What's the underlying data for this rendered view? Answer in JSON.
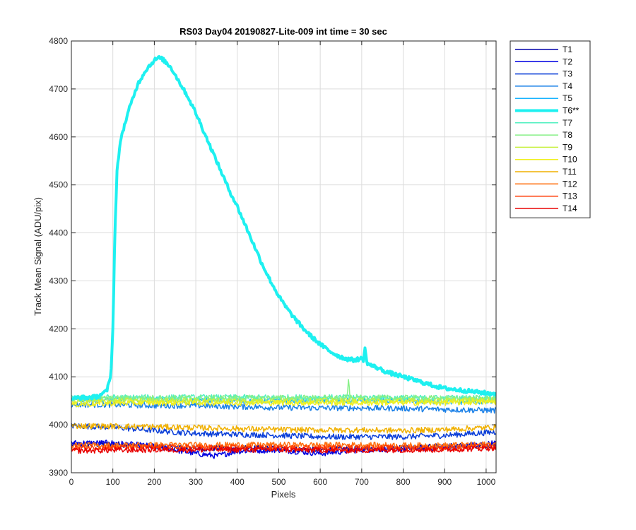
{
  "chart_data": {
    "type": "line",
    "title": "RS03 Day04 20190827-Lite-009 int time = 30 sec",
    "xlabel": "Pixels",
    "ylabel": "Track Mean Signal (ADU/pix)",
    "xlim": [
      0,
      1024
    ],
    "ylim": [
      3900,
      4800
    ],
    "xticks": [
      0,
      100,
      200,
      300,
      400,
      500,
      600,
      700,
      800,
      900,
      1000
    ],
    "yticks": [
      3900,
      4000,
      4100,
      4200,
      4300,
      4400,
      4500,
      4600,
      4700,
      4800
    ],
    "grid": true,
    "legend_position": "outside-top-right",
    "series": [
      {
        "name": "T1",
        "color": "#0000a8",
        "width": 1.5,
        "x": [
          0,
          100,
          200,
          300,
          400,
          500,
          600,
          700,
          800,
          900,
          1024
        ],
        "y": [
          3958,
          3960,
          3955,
          3950,
          3952,
          3950,
          3948,
          3950,
          3952,
          3955,
          3958
        ]
      },
      {
        "name": "T2",
        "color": "#0000e0",
        "width": 1.5,
        "x": [
          0,
          100,
          200,
          300,
          350,
          400,
          500,
          600,
          700,
          800,
          900,
          1024
        ],
        "y": [
          3962,
          3962,
          3955,
          3940,
          3935,
          3945,
          3948,
          3940,
          3948,
          3950,
          3952,
          3962
        ]
      },
      {
        "name": "T3",
        "color": "#0a3ed8",
        "width": 1.5,
        "x": [
          0,
          100,
          200,
          300,
          400,
          500,
          600,
          700,
          800,
          900,
          1024
        ],
        "y": [
          3998,
          3995,
          3988,
          3982,
          3980,
          3978,
          3975,
          3975,
          3975,
          3978,
          3985
        ]
      },
      {
        "name": "T4",
        "color": "#1a80e8",
        "width": 1.5,
        "x": [
          0,
          100,
          200,
          300,
          400,
          500,
          600,
          700,
          800,
          900,
          1024
        ],
        "y": [
          4042,
          4042,
          4040,
          4040,
          4038,
          4036,
          4035,
          4035,
          4034,
          4032,
          4030
        ]
      },
      {
        "name": "T5",
        "color": "#19b4ff",
        "width": 1.5,
        "x": [
          0,
          100,
          200,
          300,
          400,
          500,
          600,
          700,
          800,
          900,
          1024
        ],
        "y": [
          4052,
          4052,
          4052,
          4050,
          4050,
          4050,
          4050,
          4050,
          4050,
          4048,
          4048
        ]
      },
      {
        "name": "T6**",
        "color": "#1ef0f0",
        "width": 4,
        "x": [
          0,
          60,
          85,
          95,
          100,
          105,
          110,
          120,
          140,
          160,
          180,
          200,
          210,
          220,
          240,
          260,
          280,
          300,
          320,
          340,
          360,
          380,
          400,
          420,
          440,
          460,
          480,
          500,
          520,
          540,
          560,
          580,
          600,
          620,
          640,
          660,
          680,
          700,
          720,
          740,
          760,
          780,
          800,
          820,
          840,
          860,
          880,
          900,
          920,
          940,
          960,
          980,
          1000,
          1024
        ],
        "y": [
          4055,
          4058,
          4070,
          4100,
          4200,
          4400,
          4530,
          4600,
          4660,
          4710,
          4740,
          4760,
          4765,
          4762,
          4745,
          4715,
          4685,
          4650,
          4610,
          4570,
          4530,
          4490,
          4455,
          4415,
          4375,
          4335,
          4300,
          4268,
          4242,
          4220,
          4200,
          4183,
          4168,
          4155,
          4145,
          4138,
          4135,
          4138,
          4125,
          4118,
          4110,
          4105,
          4100,
          4095,
          4090,
          4085,
          4080,
          4076,
          4074,
          4072,
          4070,
          4068,
          4066,
          4065
        ]
      },
      {
        "name": "T7",
        "color": "#50f0c0",
        "width": 1.5,
        "x": [
          0,
          100,
          200,
          300,
          400,
          500,
          600,
          700,
          800,
          900,
          1024
        ],
        "y": [
          4056,
          4057,
          4057,
          4057,
          4057,
          4057,
          4057,
          4057,
          4056,
          4056,
          4056
        ]
      },
      {
        "name": "T8",
        "color": "#88f088",
        "width": 1.5,
        "x": [
          0,
          100,
          200,
          300,
          400,
          500,
          600,
          700,
          800,
          900,
          1024
        ],
        "y": [
          4054,
          4055,
          4056,
          4056,
          4056,
          4056,
          4056,
          4056,
          4056,
          4055,
          4055
        ]
      },
      {
        "name": "T9",
        "color": "#c8f040",
        "width": 1.5,
        "x": [
          0,
          100,
          200,
          300,
          400,
          500,
          600,
          700,
          800,
          900,
          1024
        ],
        "y": [
          4048,
          4050,
          4050,
          4050,
          4050,
          4050,
          4050,
          4050,
          4050,
          4050,
          4052
        ]
      },
      {
        "name": "T10",
        "color": "#f0f020",
        "width": 1.5,
        "x": [
          0,
          100,
          200,
          300,
          400,
          500,
          600,
          700,
          800,
          900,
          1024
        ],
        "y": [
          4042,
          4045,
          4046,
          4046,
          4046,
          4046,
          4046,
          4046,
          4046,
          4046,
          4048
        ]
      },
      {
        "name": "T11",
        "color": "#f0b000",
        "width": 1.5,
        "x": [
          0,
          100,
          200,
          300,
          400,
          500,
          600,
          700,
          800,
          900,
          1024
        ],
        "y": [
          3998,
          3997,
          3996,
          3994,
          3992,
          3990,
          3989,
          3989,
          3988,
          3990,
          3995
        ]
      },
      {
        "name": "T12",
        "color": "#ff7010",
        "width": 1.5,
        "x": [
          0,
          100,
          200,
          300,
          400,
          500,
          600,
          700,
          800,
          900,
          1024
        ],
        "y": [
          3958,
          3957,
          3958,
          3958,
          3958,
          3958,
          3958,
          3958,
          3957,
          3957,
          3960
        ]
      },
      {
        "name": "T13",
        "color": "#ff3800",
        "width": 1.5,
        "x": [
          0,
          100,
          200,
          300,
          400,
          500,
          600,
          700,
          800,
          900,
          1024
        ],
        "y": [
          3952,
          3953,
          3953,
          3953,
          3952,
          3952,
          3952,
          3952,
          3952,
          3952,
          3955
        ]
      },
      {
        "name": "T14",
        "color": "#e80000",
        "width": 1.5,
        "x": [
          0,
          100,
          200,
          300,
          400,
          500,
          600,
          700,
          800,
          900,
          1024
        ],
        "y": [
          3946,
          3947,
          3948,
          3948,
          3948,
          3948,
          3947,
          3947,
          3948,
          3948,
          3952
        ]
      }
    ],
    "annotations": [
      {
        "series": "T8",
        "x": 668,
        "y": 4092,
        "note": "spike"
      },
      {
        "series": "T6**",
        "x": 708,
        "y": 4160,
        "note": "spike"
      }
    ]
  }
}
